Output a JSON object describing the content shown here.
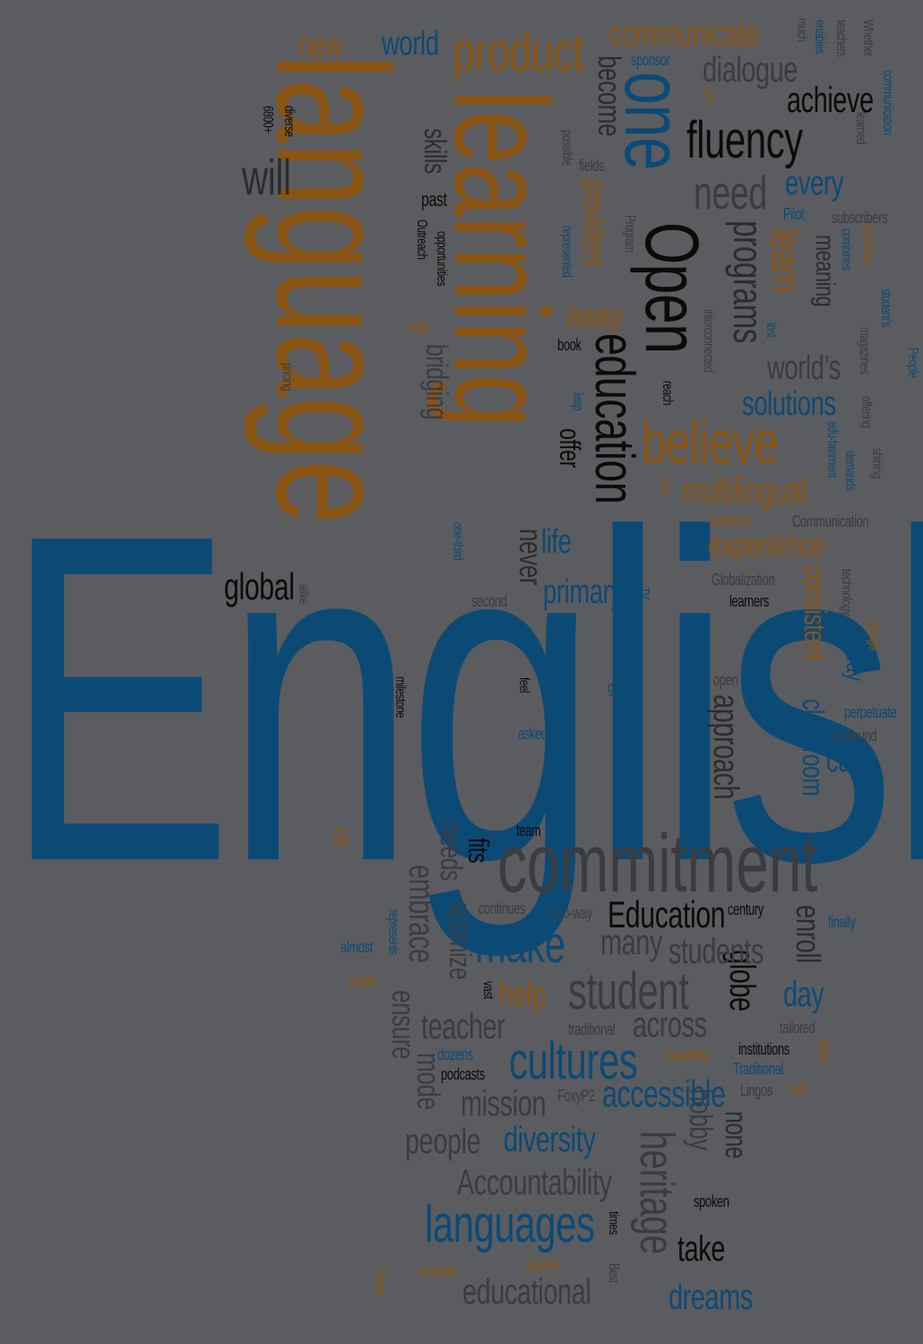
{
  "palette": {
    "background": "#5b5c5f",
    "blue": "#0c4a76",
    "orange": "#8a5413",
    "black": "#0b0b0c",
    "gray": "#2b2c2e",
    "light_gray": "#3b3c3f"
  },
  "words": {
    "english": "English",
    "language": "language",
    "learning": "learning",
    "open": "Open",
    "one": "one",
    "education": "education",
    "commitment": "commitment",
    "product": "product",
    "communicate": "communicate",
    "new": "new",
    "world": "world",
    "will": "will",
    "fluency": "fluency",
    "achieve": "achieve",
    "dialogue": "dialogue",
    "need": "need",
    "every": "every",
    "programs": "programs",
    "learn": "learn",
    "meaning": "meaning",
    "believe": "believe",
    "solutions": "solutions",
    "worlds": "world’s",
    "multilingual": "multilingual",
    "experience": "experience",
    "consistent": "consistent",
    "classroom": "classroom",
    "approach": "approach",
    "way": "way",
    "can": "can",
    "global": "global",
    "primary": "primary",
    "life": "life",
    "never": "never",
    "offer": "offer",
    "away": "away",
    "providers": "providers",
    "bridging": "bridging",
    "skills": "skills",
    "past": "past",
    "become": "become",
    "make": "make",
    "student": "student",
    "students": "students",
    "many": "many",
    "education_cap": "Education",
    "cultures": "cultures",
    "accessible": "accessible",
    "mission": "mission",
    "teacher": "teacher",
    "across": "across",
    "help": "help",
    "people": "people",
    "diversity": "diversity",
    "accountability": "Accountability",
    "languages": "languages",
    "heritage": "heritage",
    "take": "take",
    "educational": "educational",
    "dreams": "dreams",
    "day": "day",
    "globe": "globe",
    "enroll": "enroll",
    "fits": "fits",
    "needs": "needs",
    "embrace": "embrace",
    "optimize": "optimize",
    "ensure": "ensure",
    "mode": "mode",
    "hobby": "hobby",
    "none": "none",
    "us": "us",
    "milestone": "milestone",
    "team": "team",
    "continues": "continues",
    "two_way": "two-way",
    "century": "century",
    "finally": "finally",
    "almost": "almost",
    "single": "single",
    "represents": "represents",
    "vast": "vast",
    "traditional": "traditional",
    "traditional_cap": "Traditional",
    "tailored": "tailored",
    "institutions": "institutions",
    "capability": "capability",
    "dozens": "dozens",
    "podcasts": "podcasts",
    "foxyp2": "FoxyP2",
    "lingos": "Lingos",
    "suit": "suit",
    "trades": "trades",
    "spoken": "spoken",
    "times": "times",
    "best": "Best",
    "access": "access",
    "whether": "whether",
    "things": "things",
    "sponsor": "sponsor",
    "yet": "yet",
    "much": "much",
    "enables": "enables",
    "teachers": "teachers",
    "whether_cap": "Whether",
    "learned": "learned",
    "communication": "communication",
    "pilot": "Pilot",
    "subscribers": "subscribers",
    "educators": "educators",
    "combines": "combines",
    "students_apos": "student’s",
    "people_cap": "People",
    "magazines": "magazines",
    "offering": "offering",
    "shining": "shining",
    "demands": "demands",
    "edu_tainment": "edu-tainment",
    "richness": "richness",
    "communication_cap": "Communication",
    "globalization": "Globalization",
    "learners": "learners",
    "technology": "technology",
    "change": "change",
    "perpetuate": "perpetuate",
    "profound": "profound",
    "open_lc": "open",
    "games": "games",
    "asked": "asked",
    "feel": "feel",
    "second": "second",
    "tv": "TV",
    "one_third": "one-third",
    "alike": "alike",
    "lost": "lost",
    "interconnected": "interconnected",
    "reach": "reach",
    "leap": "leap",
    "learn_small": "Learn",
    "book": "book",
    "walk": "walk",
    "opportunities": "opportunities",
    "outreach": "Outreach",
    "represented": "represented",
    "program": "Program",
    "possible": "possible",
    "fields": "fields",
    "diverse": "diverse",
    "n6800": "6800+",
    "pricing": "pricing"
  }
}
